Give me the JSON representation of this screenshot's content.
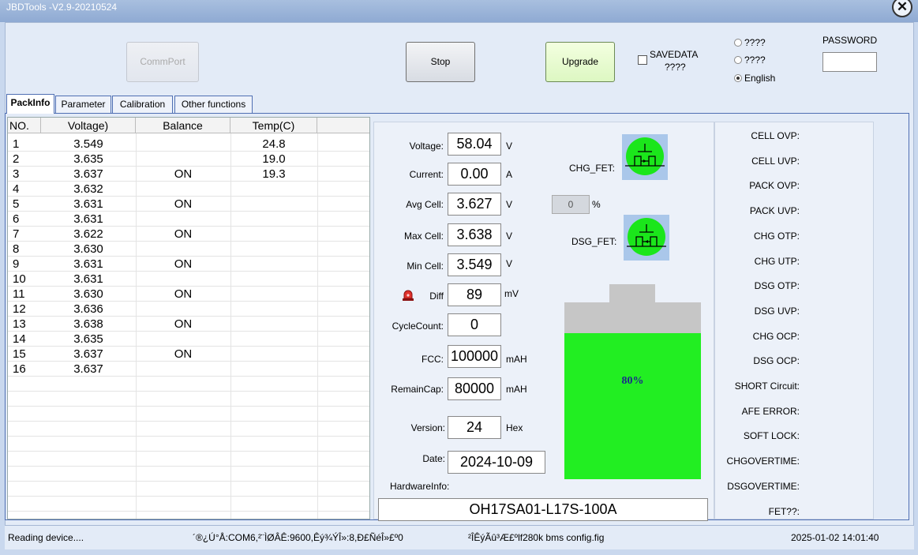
{
  "window": {
    "title": "JBDTools -V2.9-20210524"
  },
  "toolbar": {
    "commport_label": "CommPort",
    "stop_label": "Stop",
    "upgrade_label": "Upgrade",
    "savedata_label": "SAVEDATA",
    "savedata_sub": "????",
    "password_label": "PASSWORD",
    "password_value": ""
  },
  "language": {
    "options": [
      "????",
      "????",
      "English"
    ],
    "selected": "English"
  },
  "tabs": [
    "PackInfo",
    "Parameter",
    "Calibration",
    "Other functions"
  ],
  "active_tab": "PackInfo",
  "cell_table": {
    "headers": [
      "NO.",
      "Voltage)",
      "Balance",
      "Temp(C)"
    ],
    "rows": [
      [
        "1",
        "3.549",
        "",
        "24.8"
      ],
      [
        "2",
        "3.635",
        "",
        "19.0"
      ],
      [
        "3",
        "3.637",
        "ON",
        "19.3"
      ],
      [
        "4",
        "3.632",
        "",
        ""
      ],
      [
        "5",
        "3.631",
        "ON",
        ""
      ],
      [
        "6",
        "3.631",
        "",
        ""
      ],
      [
        "7",
        "3.622",
        "ON",
        ""
      ],
      [
        "8",
        "3.630",
        "",
        ""
      ],
      [
        "9",
        "3.631",
        "ON",
        ""
      ],
      [
        "10",
        "3.631",
        "",
        ""
      ],
      [
        "11",
        "3.630",
        "ON",
        ""
      ],
      [
        "12",
        "3.636",
        "",
        ""
      ],
      [
        "13",
        "3.638",
        "ON",
        ""
      ],
      [
        "14",
        "3.635",
        "",
        ""
      ],
      [
        "15",
        "3.637",
        "ON",
        ""
      ],
      [
        "16",
        "3.637",
        "",
        ""
      ]
    ]
  },
  "pack": {
    "voltage": {
      "label": "Voltage:",
      "value": "58.04",
      "unit": "V"
    },
    "current": {
      "label": "Current:",
      "value": "0.00",
      "unit": "A"
    },
    "avg_cell": {
      "label": "Avg Cell:",
      "value": "3.627",
      "unit": "V"
    },
    "max_cell": {
      "label": "Max Cell:",
      "value": "3.638",
      "unit": "V"
    },
    "min_cell": {
      "label": "Min Cell:",
      "value": "3.549",
      "unit": "V"
    },
    "diff": {
      "label": "Diff",
      "value": "89",
      "unit": "mV"
    },
    "cycle_count": {
      "label": "CycleCount:",
      "value": "0"
    },
    "fcc": {
      "label": "FCC:",
      "value": "100000",
      "unit": "mAH"
    },
    "remain_cap": {
      "label": "RemainCap:",
      "value": "80000",
      "unit": "mAH"
    },
    "version": {
      "label": "Version:",
      "value": "24",
      "unit": "Hex"
    },
    "date": {
      "label": "Date:",
      "value": "2024-10-09"
    },
    "hardware": {
      "label": "HardwareInfo:",
      "value": "OH17SA01-L17S-100A"
    },
    "chg_fet_label": "CHG_FET:",
    "dsg_fet_label": "DSG_FET:",
    "chg_fet_color": "#1be61b",
    "dsg_fet_color": "#1be61b",
    "percent_box": "0",
    "percent_unit": "%",
    "soc_label": "80%",
    "soc": 0.8,
    "battery_color": "#22ee22"
  },
  "protections": [
    "CELL OVP:",
    "CELL UVP:",
    "PACK OVP:",
    "PACK UVP:",
    "CHG OTP:",
    "CHG UTP:",
    "DSG OTP:",
    "DSG UVP:",
    "CHG OCP:",
    "DSG OCP:",
    "SHORT Circuit:",
    "AFE ERROR:",
    "SOFT LOCK:",
    "CHGOVERTIME:",
    "DSGOVERTIME:",
    "FET??:"
  ],
  "status_bar": {
    "state": "Reading device....",
    "port_info": "´®¿Ú°Å:COM6,²¨ÌØÂÊ:9600,Êý¾ÝÎ»:8,Ð£ÑéÎ»£º0",
    "config": "²ÎÊýÃû³Æ£ºlf280k bms config.fig",
    "datetime": "2025-01-02 14:01:40"
  }
}
